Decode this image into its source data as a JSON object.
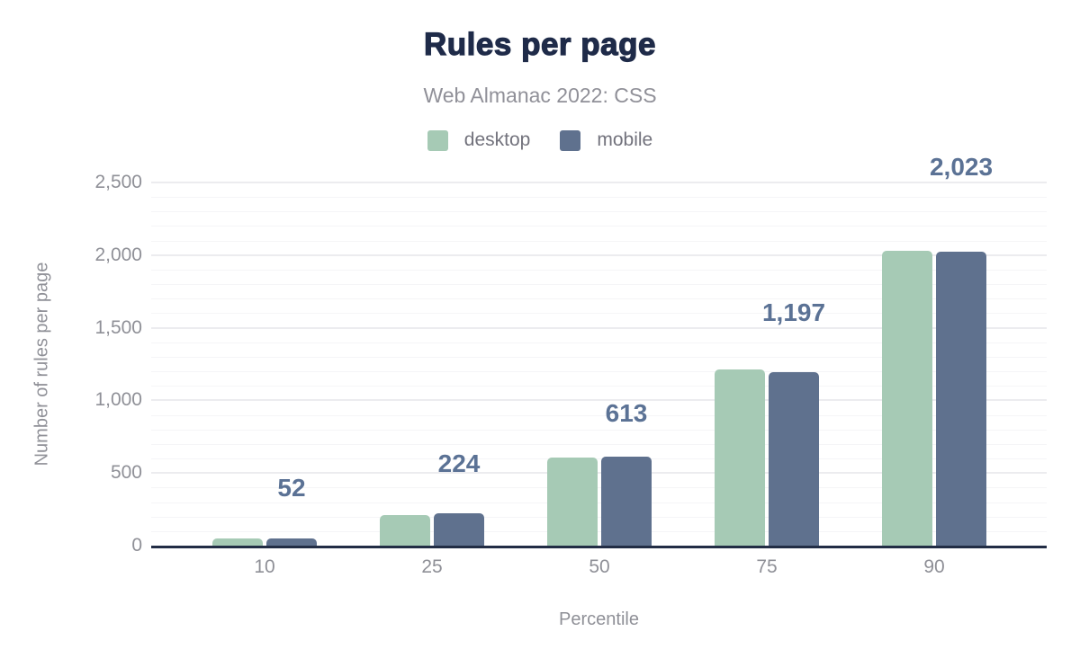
{
  "page": {
    "title": "Rules per page",
    "subtitle": "Web Almanac 2022: CSS"
  },
  "colors": {
    "title": "#1f2b49",
    "subtitle": "#909098",
    "legend_text": "#72727c",
    "tick_label": "#8f9097",
    "data_label": "#5b7295",
    "axis_line": "#222d45",
    "grid_major": "#ececef",
    "grid_minor": "#f5f5f7",
    "desktop_bar": "#a6cab5",
    "mobile_bar": "#5f718e"
  },
  "chart_data": {
    "type": "bar",
    "title": "Rules per page",
    "subtitle": "Web Almanac 2022: CSS",
    "categories": [
      "10",
      "25",
      "50",
      "75",
      "90"
    ],
    "series": [
      {
        "name": "desktop",
        "color": "#a6cab5",
        "values": [
          50,
          210,
          607,
          1215,
          2030
        ]
      },
      {
        "name": "mobile",
        "color": "#5f718e",
        "values": [
          52,
          224,
          613,
          1197,
          2023
        ]
      }
    ],
    "bar_labels": {
      "labeled_series": "mobile",
      "values": [
        "52",
        "224",
        "613",
        "1,197",
        "2,023"
      ]
    },
    "xlabel": "Percentile",
    "ylabel": "Number of rules per page",
    "ylim": [
      0,
      2500
    ],
    "yticks": [
      0,
      500,
      1000,
      1500,
      2000,
      2500
    ],
    "ytick_labels": [
      "0",
      "500",
      "1,000",
      "1,500",
      "2,000",
      "2,500"
    ],
    "minor_grid_step": 100,
    "grid": true,
    "legend_position": "top"
  }
}
